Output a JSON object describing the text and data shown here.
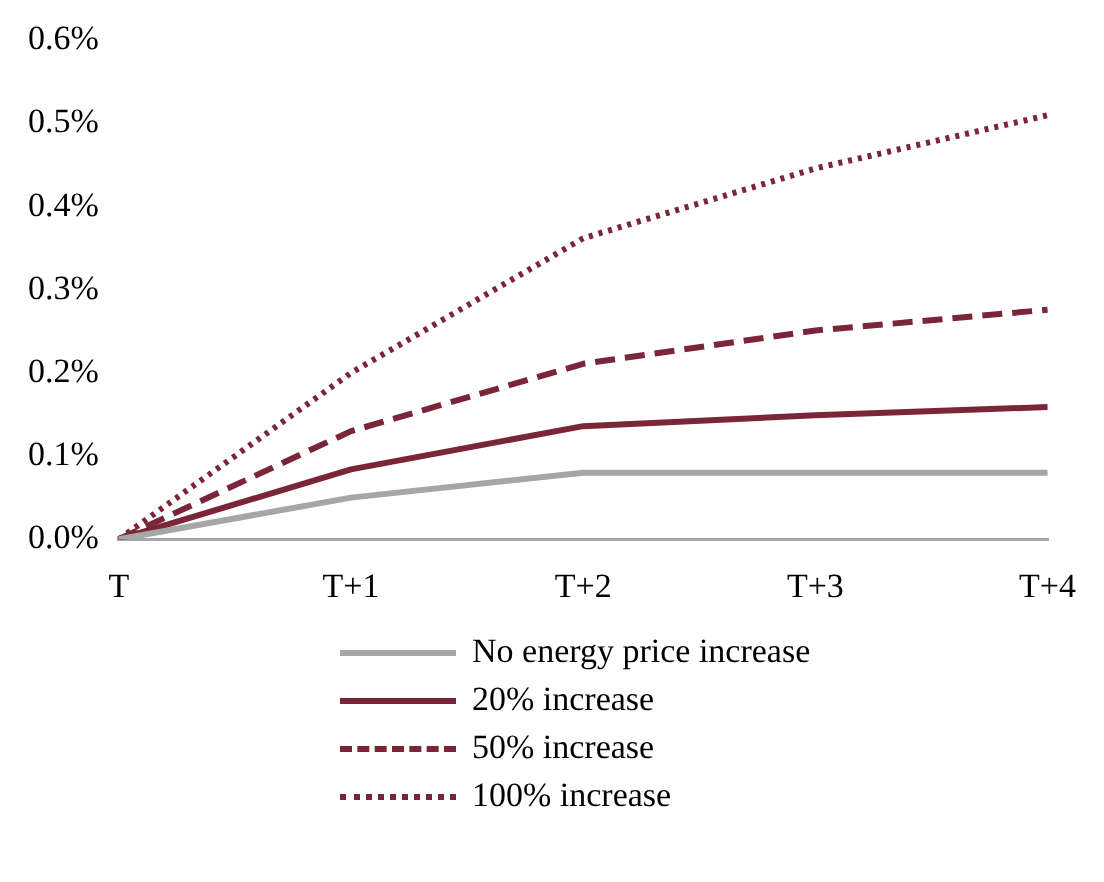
{
  "chart_data": {
    "type": "line",
    "categories": [
      "T",
      "T+1",
      "T+2",
      "T+3",
      "T+4"
    ],
    "series": [
      {
        "name": "No energy price increase",
        "color": "#a6a6a6",
        "line_style": "solid",
        "values": [
          0,
          0.05,
          0.08,
          0.08,
          0.08
        ]
      },
      {
        "name": "20% increase",
        "color": "#7b2638",
        "line_style": "solid",
        "values": [
          0,
          0.084,
          0.136,
          0.149,
          0.159
        ]
      },
      {
        "name": "50% increase",
        "color": "#7b2638",
        "line_style": "dashed",
        "values": [
          0,
          0.13,
          0.211,
          0.251,
          0.276
        ]
      },
      {
        "name": "100% increase",
        "color": "#7b2638",
        "line_style": "dotted",
        "values": [
          0,
          0.2,
          0.362,
          0.446,
          0.51
        ]
      }
    ],
    "ylim": [
      0,
      0.6
    ],
    "yticks": [
      {
        "value": 0,
        "label": "0.0%"
      },
      {
        "value": 0.1,
        "label": "0.1%"
      },
      {
        "value": 0.2,
        "label": "0.2%"
      },
      {
        "value": 0.3,
        "label": "0.3%"
      },
      {
        "value": 0.4,
        "label": "0.4%"
      },
      {
        "value": 0.5,
        "label": "0.5%"
      },
      {
        "value": 0.6,
        "label": "0.6%"
      }
    ],
    "grid": false,
    "legend": "bottom",
    "marker": "none"
  }
}
